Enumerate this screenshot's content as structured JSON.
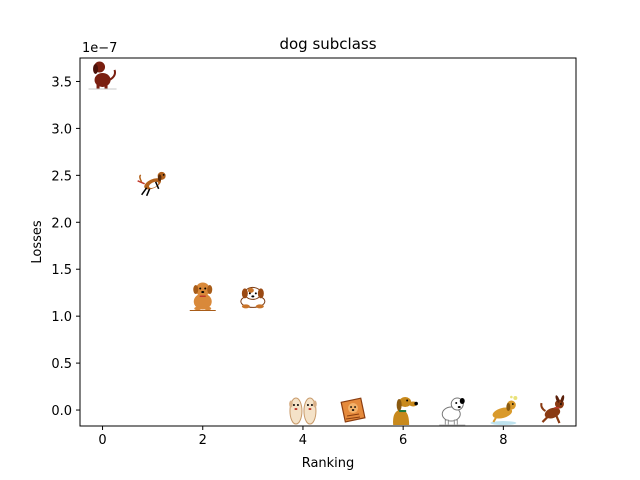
{
  "chart_data": {
    "type": "scatter",
    "title": "dog subclass",
    "xlabel": "Ranking",
    "ylabel": "Losses",
    "y_scale_label": "1e−7",
    "xlim": [
      -0.45,
      9.45
    ],
    "ylim": [
      -0.17,
      3.75
    ],
    "x_ticks": [
      0,
      2,
      4,
      6,
      8
    ],
    "x_tick_labels": [
      "0",
      "2",
      "4",
      "6",
      "8"
    ],
    "y_ticks": [
      0.0,
      0.5,
      1.0,
      1.5,
      2.0,
      2.5,
      3.0,
      3.5
    ],
    "y_tick_labels": [
      "0.0",
      "0.5",
      "1.0",
      "1.5",
      "2.0",
      "2.5",
      "3.0",
      "3.5"
    ],
    "grid": false,
    "marker": "dog-clipart-image",
    "points": [
      {
        "x": 0,
        "y": 3.58,
        "icon": "sitting-brown-dog-icon"
      },
      {
        "x": 1,
        "y": 2.42,
        "icon": "running-beagle-icon"
      },
      {
        "x": 2,
        "y": 1.22,
        "icon": "sitting-tan-puppy-icon"
      },
      {
        "x": 3,
        "y": 1.2,
        "icon": "lying-puppy-icon"
      },
      {
        "x": 4,
        "y": 0.0,
        "icon": "two-slippers-dog-icon"
      },
      {
        "x": 5,
        "y": 0.0,
        "icon": "dog-card-icon"
      },
      {
        "x": 6,
        "y": 0.0,
        "icon": "cartoon-hound-icon"
      },
      {
        "x": 7,
        "y": 0.0,
        "icon": "white-dog-icon"
      },
      {
        "x": 8,
        "y": 0.0,
        "icon": "bathing-dog-icon"
      },
      {
        "x": 9,
        "y": 0.0,
        "icon": "jumping-brown-dog-icon"
      }
    ]
  }
}
